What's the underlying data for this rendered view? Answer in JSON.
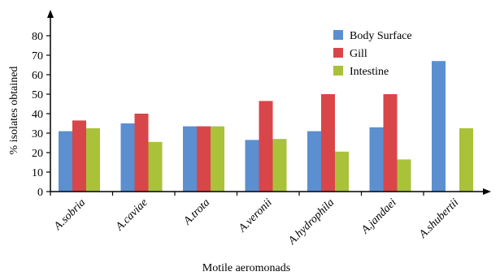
{
  "chart_data": {
    "type": "bar",
    "title": "",
    "xlabel": "Motile aeromonads",
    "ylabel": "% isolates obtained",
    "ylim": [
      0,
      90
    ],
    "yticks": [
      0,
      10,
      20,
      30,
      40,
      50,
      60,
      70,
      80
    ],
    "grid": false,
    "legend_position": "top-right",
    "categories": [
      "A.sobria",
      "A.caviae",
      "A.trota",
      "A.veronii",
      "A.hydrophila",
      "A.jandaei",
      "A.shubertii"
    ],
    "series": [
      {
        "name": "Body Surface",
        "color": "#5b8fd0",
        "values": [
          31,
          35,
          33.5,
          26.5,
          31,
          33,
          67
        ]
      },
      {
        "name": "Gill",
        "color": "#d9464a",
        "values": [
          36.5,
          40,
          33.5,
          46.5,
          50,
          50,
          0
        ]
      },
      {
        "name": "Intestine",
        "color": "#a9c23a",
        "values": [
          32.5,
          25.5,
          33.5,
          27,
          20.5,
          16.5,
          32.5
        ]
      }
    ]
  }
}
